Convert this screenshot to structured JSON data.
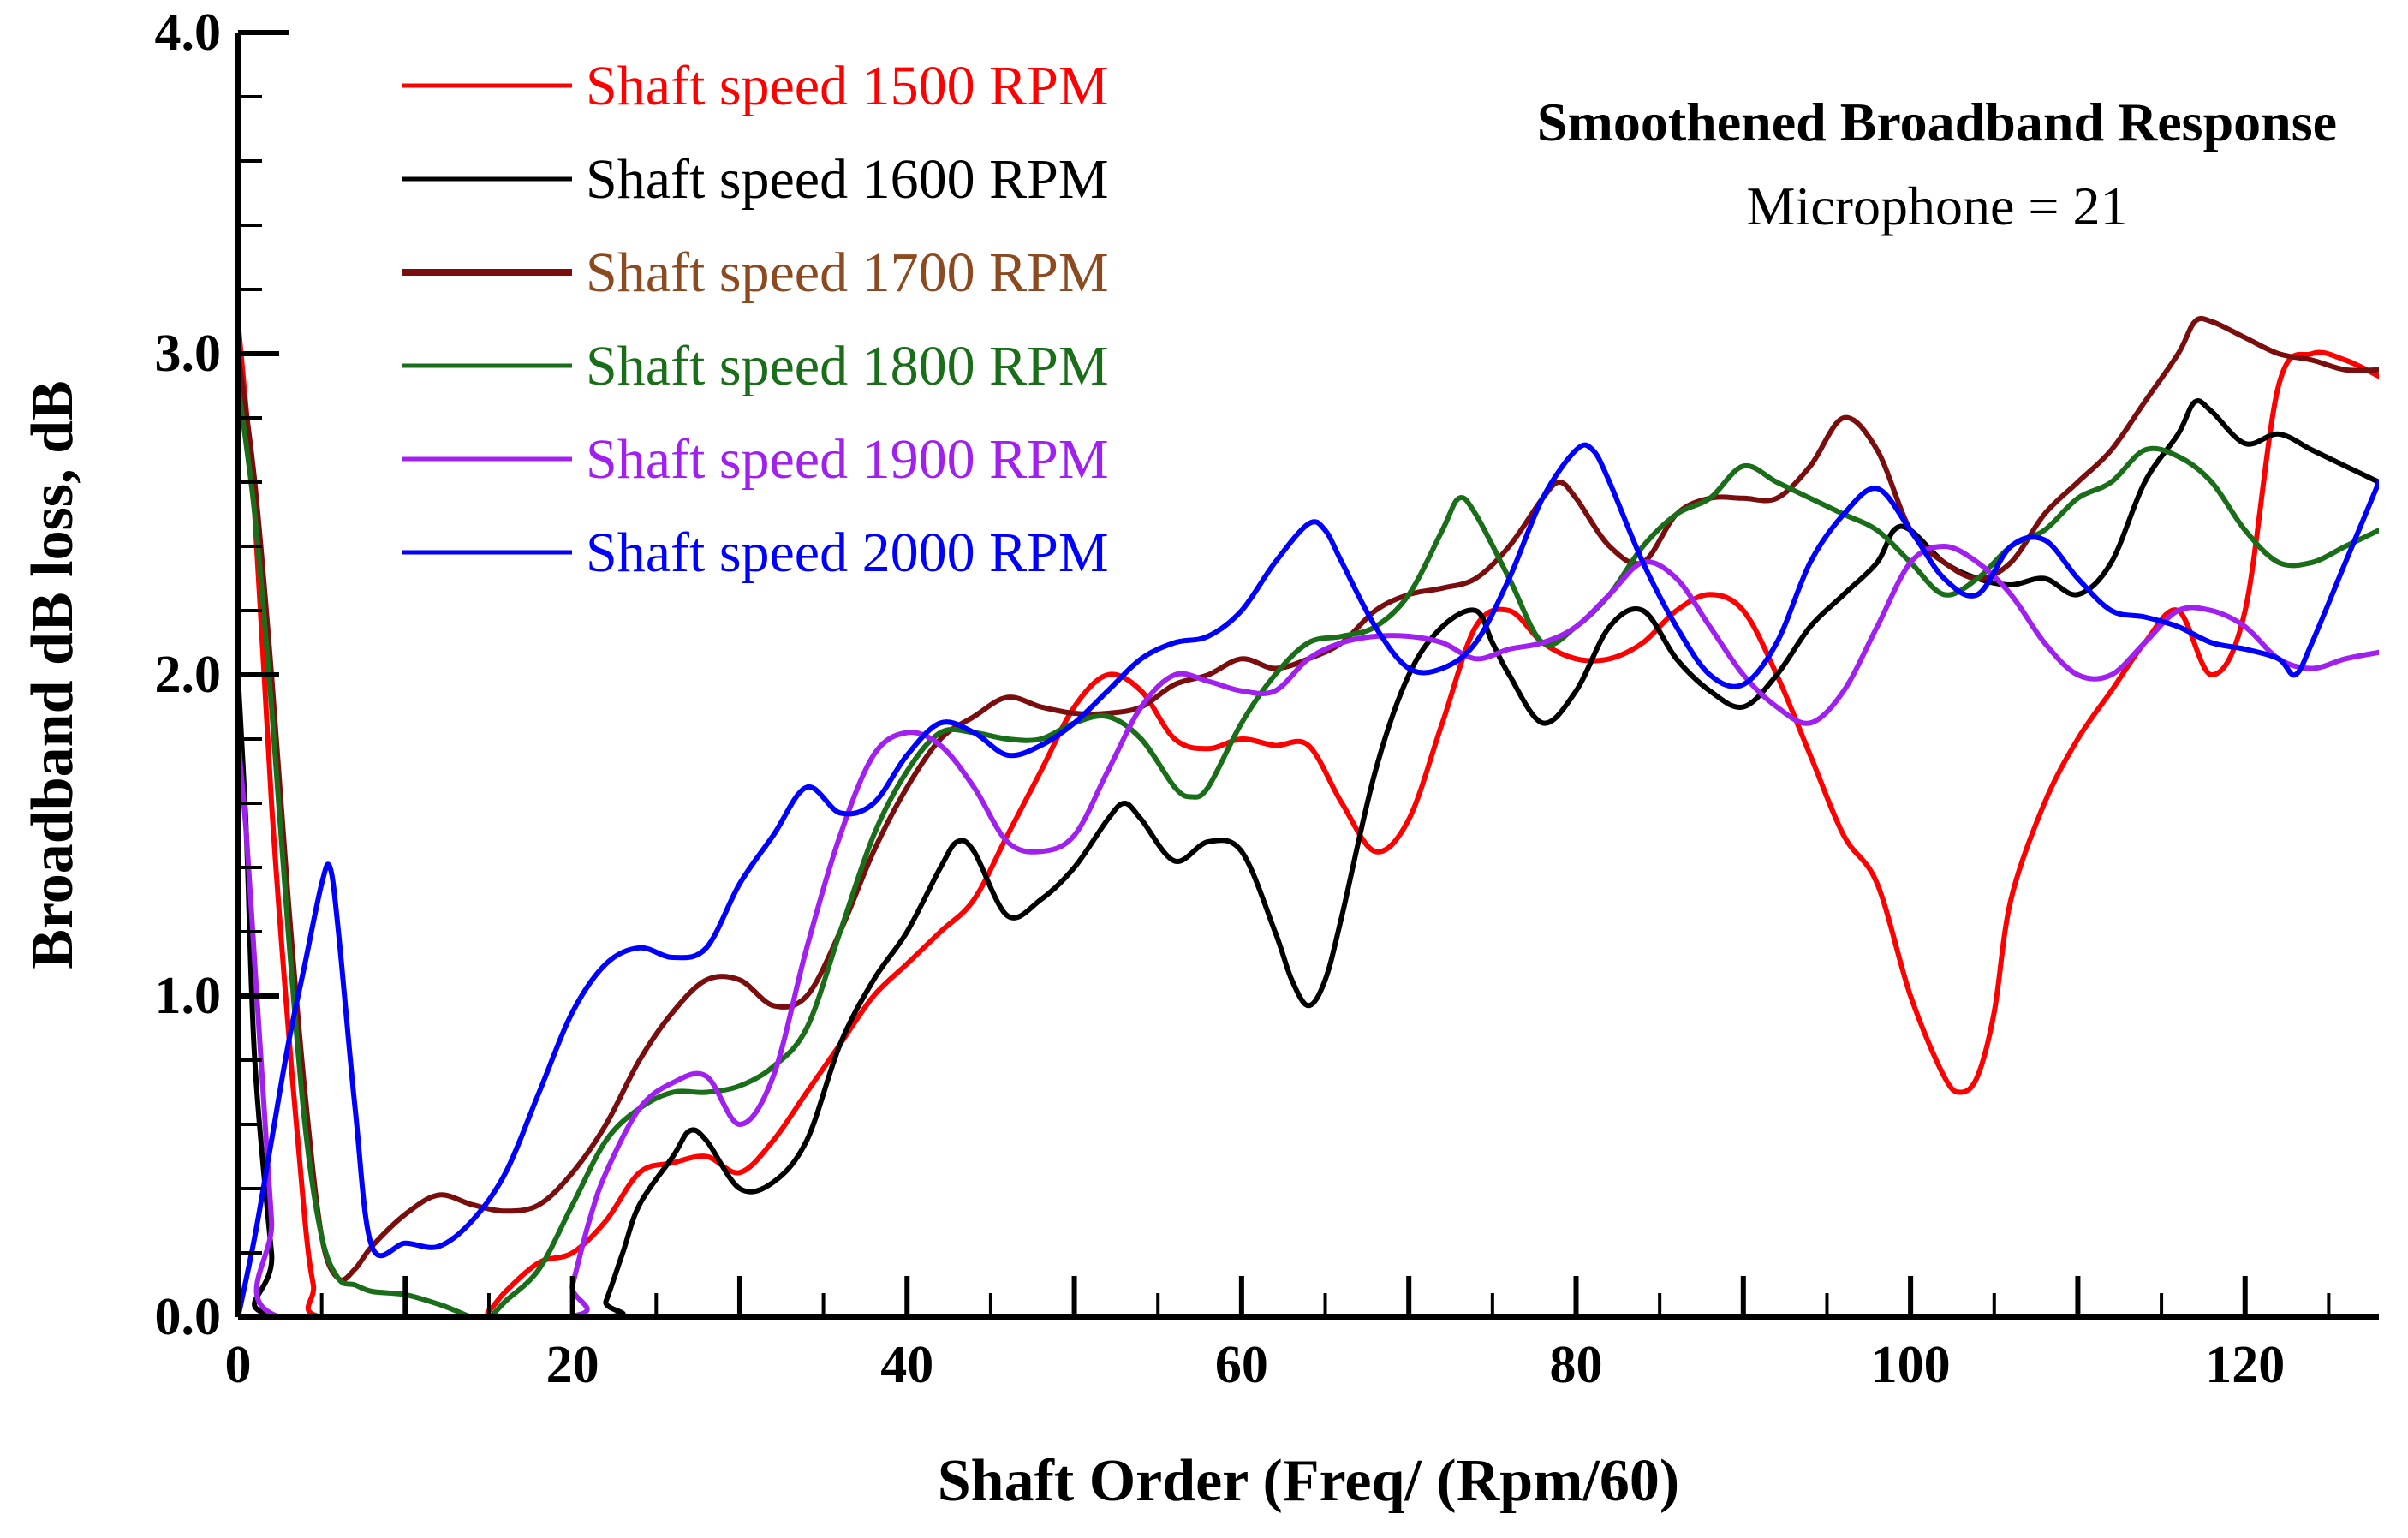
{
  "chart_data": {
    "type": "line",
    "title": "Smoothened Broadband Response",
    "subtitle": "Microphone = 21",
    "xlabel": "Shaft Order (Freq/ (Rpm/60)",
    "ylabel": "Broadband dB loss, dB",
    "xlim": [
      0,
      128
    ],
    "ylim": [
      0,
      4
    ],
    "xticks": [
      0,
      20,
      40,
      60,
      80,
      100,
      120
    ],
    "xtick_labels": [
      "0",
      "20",
      "40",
      "60",
      "80",
      "100",
      "120"
    ],
    "yticks": [
      0,
      1,
      2,
      3,
      4
    ],
    "ytick_labels": [
      "0.0",
      "1.0",
      "2.0",
      "3.0",
      "4.0"
    ],
    "legend_position": "top-left",
    "grid": false,
    "series": [
      {
        "name": "Shaft speed 1500 RPM",
        "color": "#ff0000",
        "x": [
          0,
          1,
          2,
          3,
          4,
          4.5,
          5,
          14,
          15,
          16,
          18,
          20,
          22,
          24,
          26,
          28,
          30,
          32,
          34,
          36,
          38,
          40,
          42,
          44,
          46,
          48,
          50,
          52,
          54,
          56,
          58,
          60,
          62,
          64,
          66,
          68,
          70,
          72,
          74,
          76,
          78,
          80,
          82,
          84,
          86,
          88,
          90,
          92,
          94,
          96,
          98,
          100,
          102,
          103,
          104,
          105,
          106,
          108,
          110,
          112,
          114,
          116,
          118,
          120,
          122,
          124,
          126,
          128
        ],
        "y": [
          3.1,
          2.5,
          1.6,
          0.9,
          0.3,
          0.1,
          0.0,
          0.0,
          0.02,
          0.08,
          0.17,
          0.2,
          0.3,
          0.45,
          0.48,
          0.5,
          0.45,
          0.55,
          0.7,
          0.85,
          1.0,
          1.1,
          1.2,
          1.3,
          1.5,
          1.7,
          1.9,
          2.0,
          1.95,
          1.8,
          1.77,
          1.8,
          1.78,
          1.78,
          1.6,
          1.45,
          1.55,
          1.85,
          2.15,
          2.2,
          2.1,
          2.05,
          2.05,
          2.1,
          2.2,
          2.25,
          2.2,
          2.0,
          1.75,
          1.5,
          1.35,
          1.0,
          0.75,
          0.7,
          0.75,
          0.95,
          1.3,
          1.6,
          1.8,
          1.95,
          2.1,
          2.2,
          2.0,
          2.2,
          2.9,
          3.0,
          2.98,
          2.93
        ]
      },
      {
        "name": "Shaft speed 1600 RPM",
        "color": "#000000",
        "x": [
          0,
          0.5,
          1,
          2,
          2.5,
          21.5,
          22,
          23,
          24,
          26,
          27,
          28,
          30,
          32,
          34,
          36,
          38,
          40,
          42,
          43,
          44,
          46,
          48,
          50,
          52,
          53,
          54,
          56,
          58,
          60,
          62,
          63,
          64,
          65,
          66,
          68,
          70,
          72,
          74,
          75,
          76,
          78,
          80,
          82,
          84,
          86,
          88,
          90,
          92,
          94,
          96,
          98,
          99,
          100,
          102,
          104,
          106,
          108,
          110,
          112,
          114,
          116,
          117,
          118,
          120,
          122,
          124,
          126,
          128
        ],
        "y": [
          2.0,
          1.5,
          0.8,
          0.2,
          0.0,
          0.0,
          0.05,
          0.2,
          0.35,
          0.5,
          0.58,
          0.55,
          0.4,
          0.42,
          0.55,
          0.85,
          1.05,
          1.2,
          1.4,
          1.48,
          1.45,
          1.25,
          1.3,
          1.4,
          1.55,
          1.6,
          1.55,
          1.42,
          1.48,
          1.45,
          1.2,
          1.05,
          0.97,
          1.05,
          1.25,
          1.7,
          2.0,
          2.15,
          2.2,
          2.1,
          2.0,
          1.85,
          1.95,
          2.15,
          2.2,
          2.05,
          1.95,
          1.9,
          2.0,
          2.15,
          2.25,
          2.35,
          2.45,
          2.45,
          2.35,
          2.3,
          2.28,
          2.3,
          2.25,
          2.35,
          2.6,
          2.75,
          2.85,
          2.82,
          2.72,
          2.75,
          2.7,
          2.65,
          2.6
        ]
      },
      {
        "name": "Shaft speed 1700 RPM",
        "color": "#7a0e0e",
        "x": [
          0,
          1,
          2,
          3,
          4,
          5,
          6,
          7,
          8,
          10,
          12,
          14,
          16,
          18,
          20,
          22,
          24,
          26,
          28,
          30,
          32,
          34,
          36,
          38,
          40,
          42,
          44,
          46,
          48,
          50,
          52,
          54,
          56,
          58,
          60,
          62,
          64,
          66,
          68,
          70,
          72,
          74,
          76,
          78,
          79,
          80,
          82,
          84,
          86,
          88,
          90,
          92,
          94,
          96,
          98,
          100,
          102,
          104,
          106,
          108,
          110,
          112,
          114,
          116,
          117,
          118,
          120,
          122,
          124,
          126,
          128
        ],
        "y": [
          3.0,
          2.6,
          2.0,
          1.3,
          0.7,
          0.25,
          0.12,
          0.15,
          0.22,
          0.32,
          0.38,
          0.35,
          0.33,
          0.35,
          0.45,
          0.6,
          0.8,
          0.95,
          1.05,
          1.05,
          0.97,
          1.0,
          1.2,
          1.45,
          1.65,
          1.8,
          1.87,
          1.93,
          1.9,
          1.88,
          1.88,
          1.9,
          1.97,
          2.0,
          2.05,
          2.02,
          2.05,
          2.1,
          2.2,
          2.25,
          2.27,
          2.3,
          2.4,
          2.55,
          2.6,
          2.55,
          2.4,
          2.35,
          2.5,
          2.55,
          2.55,
          2.55,
          2.65,
          2.8,
          2.7,
          2.45,
          2.35,
          2.3,
          2.35,
          2.5,
          2.6,
          2.7,
          2.85,
          3.0,
          3.1,
          3.1,
          3.05,
          3.0,
          2.98,
          2.95,
          2.95
        ]
      },
      {
        "name": "Shaft speed 1800 RPM",
        "color": "#1a6e1a",
        "x": [
          0,
          1,
          2,
          3,
          4,
          5,
          6,
          7,
          8,
          10,
          12,
          13,
          14,
          15,
          16,
          18,
          20,
          22,
          24,
          26,
          28,
          30,
          32,
          34,
          36,
          38,
          40,
          42,
          44,
          46,
          48,
          50,
          52,
          54,
          56,
          57,
          58,
          60,
          62,
          64,
          66,
          68,
          70,
          72,
          73,
          74,
          76,
          78,
          80,
          82,
          84,
          86,
          88,
          90,
          92,
          94,
          96,
          98,
          100,
          102,
          104,
          106,
          108,
          110,
          112,
          114,
          116,
          118,
          120,
          122,
          124,
          126,
          128
        ],
        "y": [
          2.9,
          2.5,
          1.9,
          1.2,
          0.6,
          0.25,
          0.12,
          0.1,
          0.08,
          0.07,
          0.04,
          0.02,
          0.0,
          0.0,
          0.05,
          0.15,
          0.35,
          0.55,
          0.65,
          0.7,
          0.7,
          0.72,
          0.78,
          0.9,
          1.2,
          1.5,
          1.7,
          1.82,
          1.82,
          1.8,
          1.8,
          1.85,
          1.87,
          1.8,
          1.65,
          1.62,
          1.65,
          1.85,
          2.0,
          2.1,
          2.12,
          2.15,
          2.25,
          2.45,
          2.55,
          2.5,
          2.3,
          2.1,
          2.15,
          2.25,
          2.4,
          2.5,
          2.55,
          2.65,
          2.6,
          2.55,
          2.5,
          2.45,
          2.35,
          2.25,
          2.3,
          2.4,
          2.45,
          2.55,
          2.6,
          2.7,
          2.68,
          2.6,
          2.45,
          2.35,
          2.35,
          2.4,
          2.45
        ]
      },
      {
        "name": "Shaft speed 1900 RPM",
        "color": "#a020f0",
        "x": [
          0,
          0.5,
          1,
          1.5,
          2,
          2.5,
          19.5,
          20,
          21,
          22,
          24,
          26,
          28,
          30,
          32,
          34,
          36,
          38,
          40,
          42,
          44,
          46,
          48,
          50,
          52,
          54,
          56,
          58,
          60,
          62,
          64,
          66,
          68,
          70,
          72,
          74,
          76,
          78,
          80,
          82,
          84,
          86,
          88,
          90,
          92,
          94,
          96,
          98,
          100,
          102,
          104,
          106,
          108,
          110,
          112,
          114,
          116,
          118,
          120,
          122,
          124,
          126,
          128
        ],
        "y": [
          1.8,
          1.5,
          1.1,
          0.7,
          0.3,
          0.0,
          0.0,
          0.1,
          0.3,
          0.45,
          0.65,
          0.73,
          0.75,
          0.6,
          0.75,
          1.15,
          1.5,
          1.75,
          1.82,
          1.78,
          1.65,
          1.48,
          1.45,
          1.5,
          1.7,
          1.9,
          2.0,
          1.98,
          1.95,
          1.95,
          2.05,
          2.1,
          2.12,
          2.12,
          2.1,
          2.05,
          2.08,
          2.1,
          2.15,
          2.25,
          2.35,
          2.3,
          2.15,
          2.0,
          1.9,
          1.85,
          1.95,
          2.15,
          2.35,
          2.4,
          2.35,
          2.25,
          2.1,
          2.0,
          2.0,
          2.1,
          2.2,
          2.2,
          2.15,
          2.05,
          2.02,
          2.05,
          2.07
        ]
      },
      {
        "name": "Shaft speed 2000 RPM",
        "color": "#0000ff",
        "x": [
          0,
          1,
          2,
          3,
          4,
          5,
          5.5,
          6,
          7,
          8,
          10,
          12,
          14,
          16,
          18,
          20,
          22,
          24,
          26,
          28,
          30,
          32,
          34,
          36,
          38,
          40,
          42,
          44,
          46,
          48,
          50,
          52,
          54,
          56,
          58,
          60,
          62,
          64,
          65,
          66,
          68,
          70,
          72,
          74,
          76,
          78,
          80,
          81,
          82,
          84,
          86,
          88,
          90,
          92,
          94,
          96,
          98,
          100,
          102,
          104,
          106,
          108,
          110,
          112,
          114,
          116,
          118,
          120,
          122,
          123,
          124,
          126,
          128
        ],
        "y": [
          0.0,
          0.25,
          0.55,
          0.85,
          1.1,
          1.35,
          1.4,
          1.2,
          0.65,
          0.22,
          0.23,
          0.22,
          0.3,
          0.45,
          0.7,
          0.95,
          1.1,
          1.15,
          1.12,
          1.15,
          1.35,
          1.5,
          1.65,
          1.57,
          1.6,
          1.75,
          1.85,
          1.82,
          1.75,
          1.78,
          1.85,
          1.95,
          2.05,
          2.1,
          2.12,
          2.2,
          2.35,
          2.47,
          2.45,
          2.35,
          2.15,
          2.02,
          2.02,
          2.1,
          2.3,
          2.55,
          2.7,
          2.7,
          2.6,
          2.35,
          2.15,
          2.0,
          1.97,
          2.1,
          2.35,
          2.5,
          2.58,
          2.45,
          2.3,
          2.25,
          2.4,
          2.42,
          2.3,
          2.2,
          2.18,
          2.15,
          2.1,
          2.08,
          2.05,
          2.0,
          2.1,
          2.35,
          2.6
        ]
      }
    ]
  }
}
